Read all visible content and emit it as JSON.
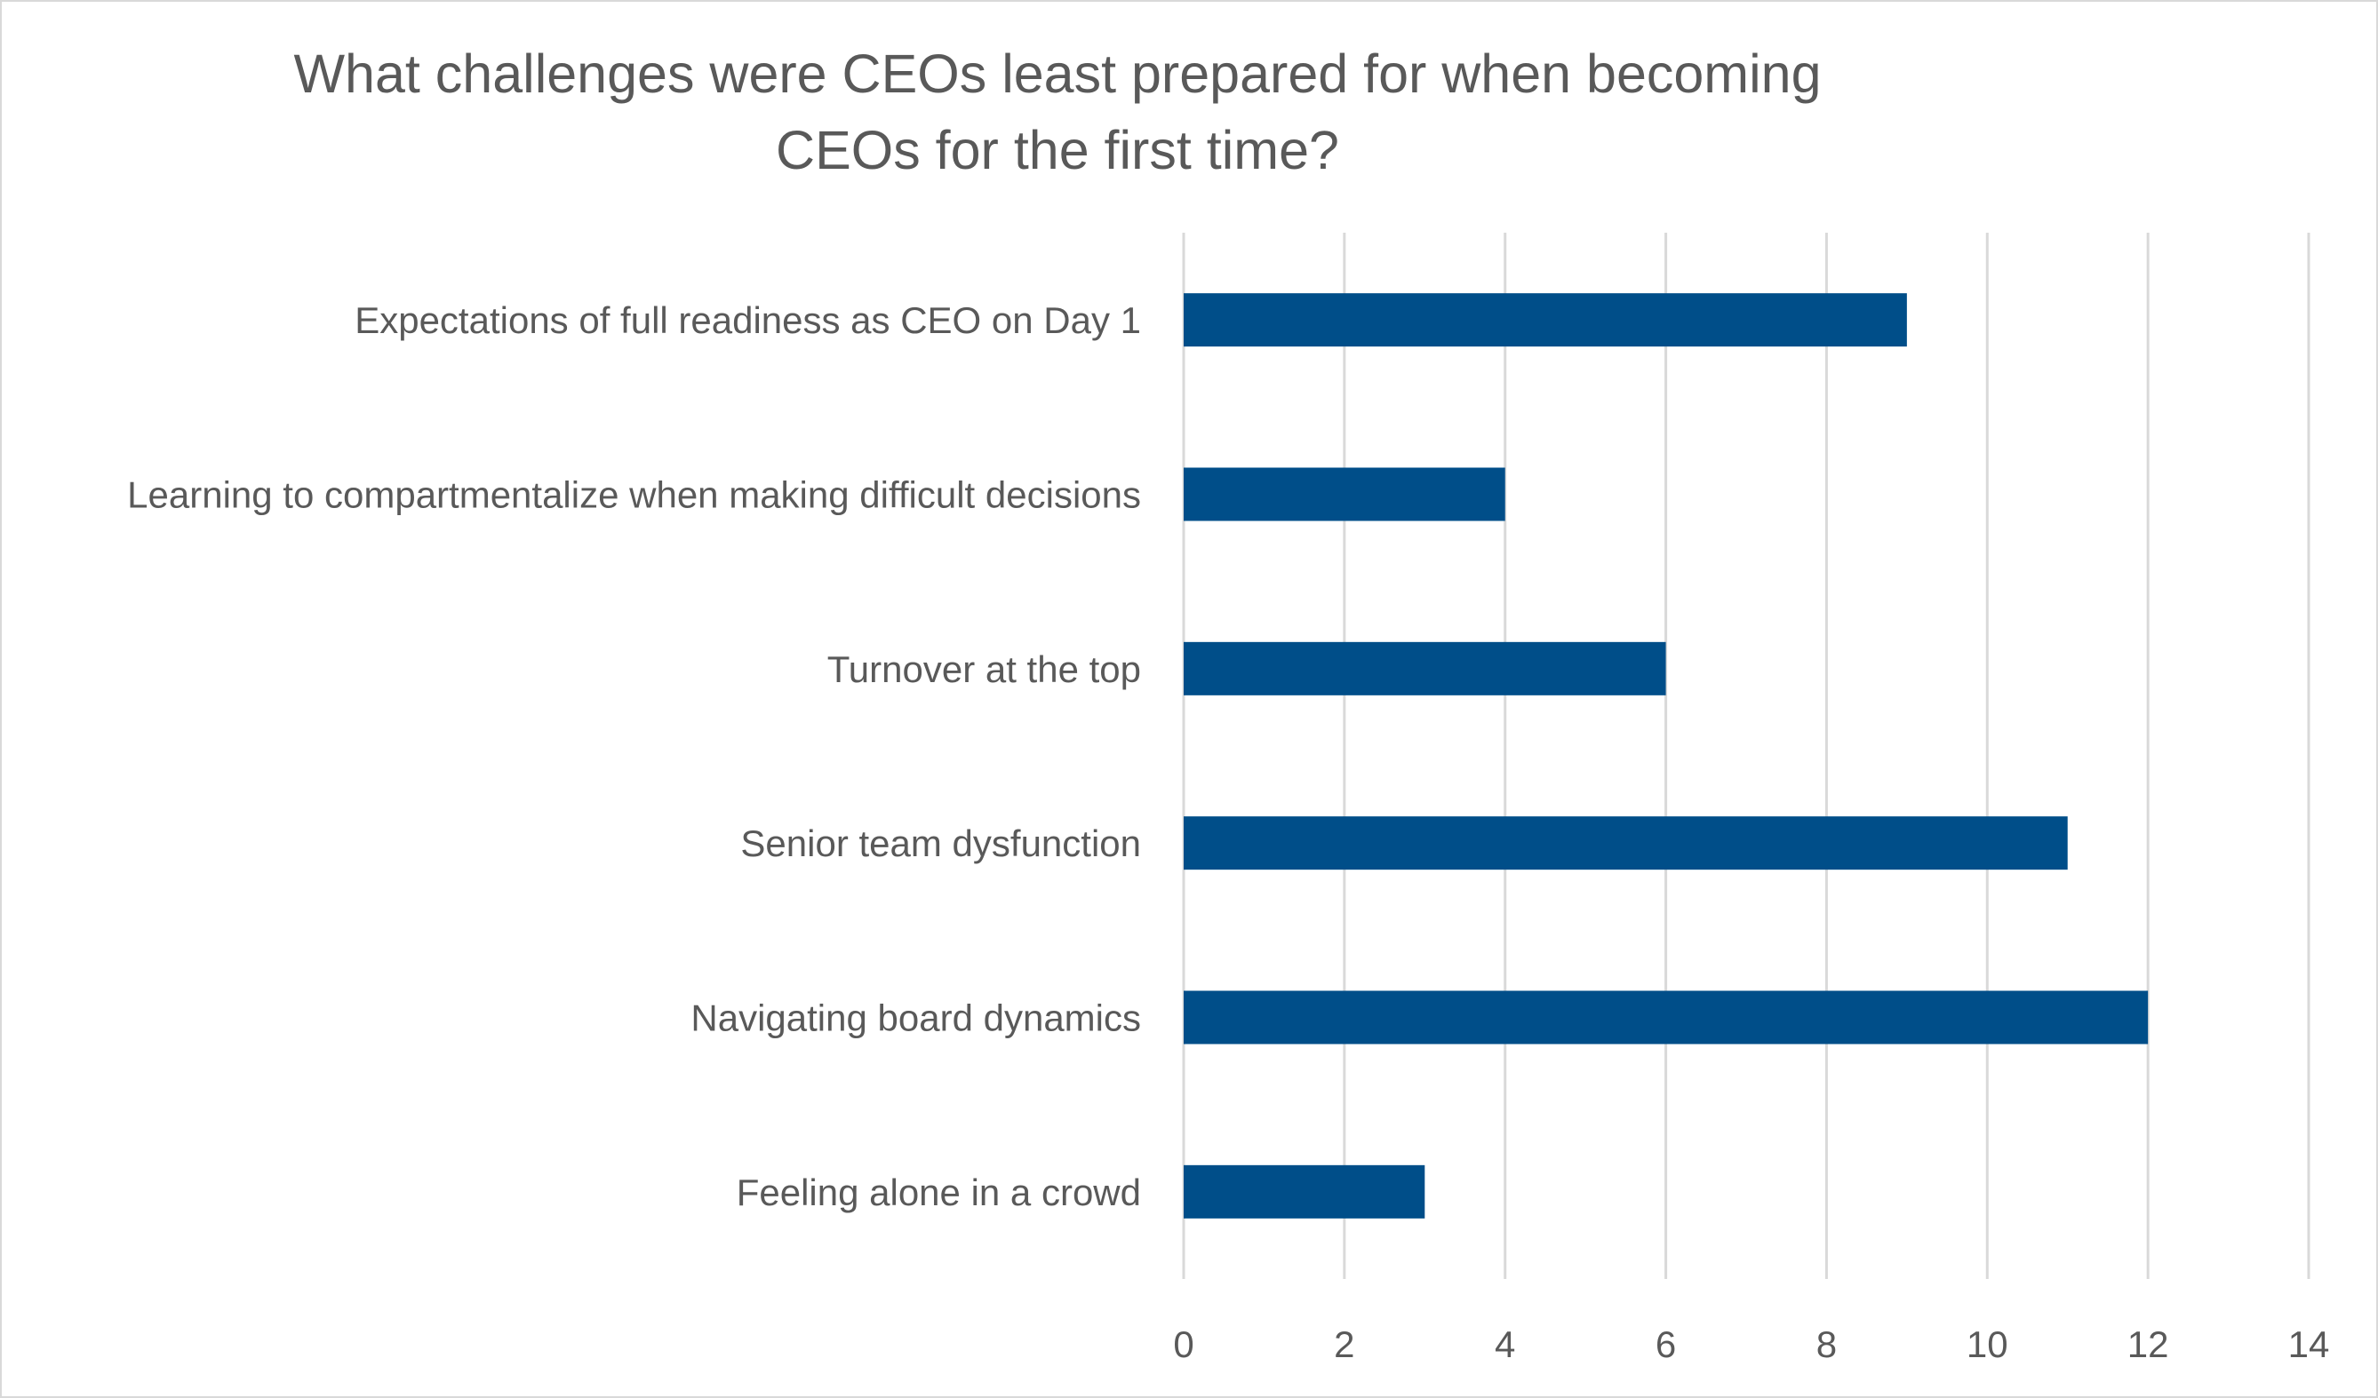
{
  "chart_data": {
    "type": "bar",
    "orientation": "horizontal",
    "title": "What challenges were CEOs least prepared for when becoming CEOs for the first time?",
    "categories": [
      "Expectations of full readiness as CEO on Day 1",
      "Learning to compartmentalize when making difficult decisions",
      "Turnover at the top",
      "Senior team dysfunction",
      "Navigating board dynamics",
      "Feeling alone in a crowd"
    ],
    "values": [
      9,
      4,
      6,
      11,
      12,
      3
    ],
    "xlim": [
      0,
      14
    ],
    "xticks": [
      0,
      2,
      4,
      6,
      8,
      10,
      12,
      14
    ],
    "grid": "vertical",
    "legend": "none",
    "colors": {
      "bar": "#004e89",
      "grid": "#d9d9d9",
      "text": "#595959"
    }
  }
}
